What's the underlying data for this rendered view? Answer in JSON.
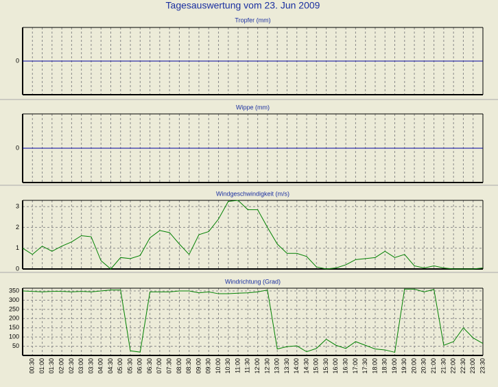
{
  "title": "Tagesauswertung vom 23. Jun 2009",
  "chart_data": [
    {
      "type": "line",
      "title": "Tropfer (mm)",
      "color": "#0000a0",
      "values": [
        0,
        0,
        0,
        0,
        0,
        0,
        0,
        0,
        0,
        0,
        0,
        0,
        0,
        0,
        0,
        0,
        0,
        0,
        0,
        0,
        0,
        0,
        0,
        0,
        0,
        0,
        0,
        0,
        0,
        0,
        0,
        0,
        0,
        0,
        0,
        0,
        0,
        0,
        0,
        0,
        0,
        0,
        0,
        0,
        0,
        0,
        0,
        0
      ],
      "ylim": [
        -1,
        1
      ],
      "yticks": [
        0
      ]
    },
    {
      "type": "line",
      "title": "Wippe (mm)",
      "color": "#0000a0",
      "values": [
        0,
        0,
        0,
        0,
        0,
        0,
        0,
        0,
        0,
        0,
        0,
        0,
        0,
        0,
        0,
        0,
        0,
        0,
        0,
        0,
        0,
        0,
        0,
        0,
        0,
        0,
        0,
        0,
        0,
        0,
        0,
        0,
        0,
        0,
        0,
        0,
        0,
        0,
        0,
        0,
        0,
        0,
        0,
        0,
        0,
        0,
        0,
        0
      ],
      "ylim": [
        -1,
        1
      ],
      "yticks": [
        0
      ]
    },
    {
      "type": "line",
      "title": "Windgeschwindigkeit (m/s)",
      "color": "#008000",
      "values": [
        1.0,
        0.7,
        1.1,
        0.85,
        1.1,
        1.3,
        1.6,
        1.55,
        0.4,
        0.0,
        0.55,
        0.5,
        0.65,
        1.5,
        1.85,
        1.75,
        1.2,
        0.7,
        1.65,
        1.8,
        2.4,
        3.25,
        3.3,
        2.85,
        2.85,
        2.0,
        1.2,
        0.75,
        0.75,
        0.6,
        0.1,
        0.0,
        0.05,
        0.2,
        0.45,
        0.5,
        0.55,
        0.85,
        0.55,
        0.7,
        0.15,
        0.05,
        0.15,
        0.05,
        0.0,
        0.0,
        0.0,
        0.05
      ],
      "ylim": [
        0,
        3.3
      ],
      "yticks": [
        0,
        1,
        2,
        3
      ]
    },
    {
      "type": "line",
      "title": "Windrichtung (Grad)",
      "color": "#008000",
      "categories": [
        null,
        "00:30",
        "01:00",
        "01:30",
        "02:00",
        "02:30",
        "03:00",
        "03:30",
        "04:00",
        "04:30",
        "05:00",
        "05:30",
        "06:00",
        "06:30",
        "07:00",
        "07:30",
        "08:00",
        "08:30",
        "09:00",
        "09:30",
        "10:00",
        "10:30",
        "11:00",
        "11:30",
        "12:00",
        "12:30",
        "13:00",
        "13:30",
        "14:00",
        "14:30",
        "15:00",
        "15:30",
        "16:00",
        "16:30",
        "17:00",
        "17:30",
        "18:00",
        "18:30",
        "19:00",
        "19:30",
        "20:00",
        "20:30",
        "21:00",
        "21:30",
        "22:00",
        "22:30",
        "23:00",
        "23:30"
      ],
      "values": [
        350,
        348,
        345,
        348,
        348,
        345,
        348,
        345,
        350,
        355,
        355,
        25,
        18,
        345,
        345,
        345,
        350,
        350,
        340,
        345,
        335,
        335,
        338,
        340,
        345,
        355,
        35,
        48,
        52,
        20,
        38,
        88,
        55,
        38,
        75,
        55,
        35,
        30,
        17,
        360,
        360,
        345,
        358,
        55,
        75,
        150,
        95,
        65
      ],
      "ylim": [
        0,
        365
      ],
      "yticks": [
        50,
        100,
        150,
        200,
        250,
        300,
        350
      ]
    }
  ]
}
